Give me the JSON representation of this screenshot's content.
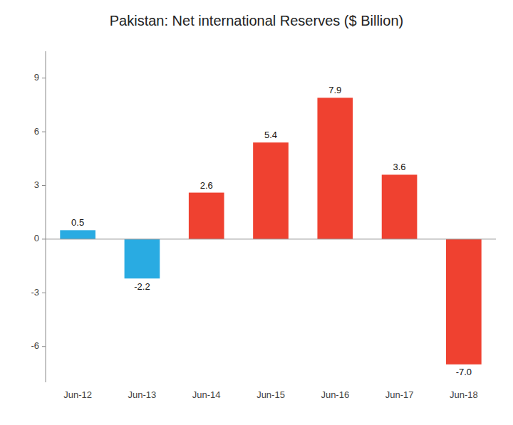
{
  "chart_data": {
    "type": "bar",
    "title": "Pakistan: Net international Reserves ($ Billion)",
    "categories": [
      "Jun-12",
      "Jun-13",
      "Jun-14",
      "Jun-15",
      "Jun-16",
      "Jun-17",
      "Jun-18"
    ],
    "values": [
      0.5,
      -2.2,
      2.6,
      5.4,
      7.9,
      3.6,
      -7.0
    ],
    "value_labels": [
      "0.5",
      "-2.2",
      "2.6",
      "5.4",
      "7.9",
      "3.6",
      "-7.0"
    ],
    "colors": [
      "#29ABE2",
      "#29ABE2",
      "#EF4130",
      "#EF4130",
      "#EF4130",
      "#EF4130",
      "#EF4130"
    ],
    "ylim": [
      -8,
      10.5
    ],
    "yticks": [
      -6,
      -3,
      0,
      3,
      6,
      9
    ],
    "grid": false,
    "data_labels": true
  }
}
